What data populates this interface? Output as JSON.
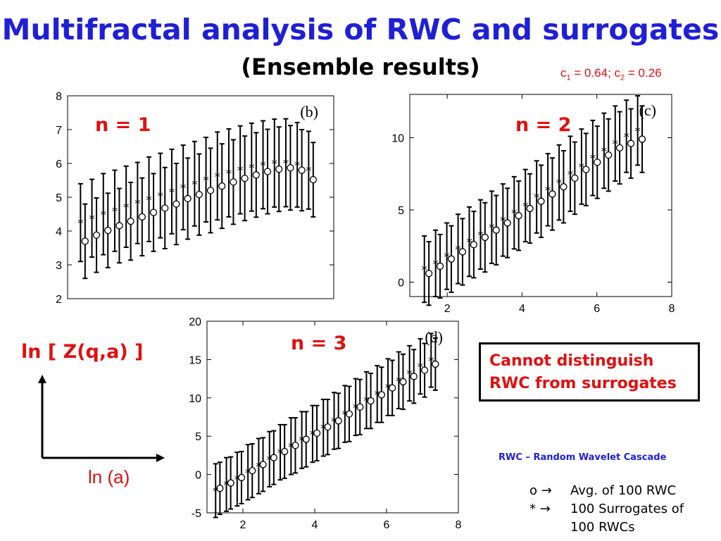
{
  "title": "Multifractal analysis of RWC and surrogates",
  "subtitle": "(Ensemble results)",
  "params": {
    "c1_label": "c",
    "c1_sub": "1",
    "c1_val": " = 0.64; ",
    "c2_label": "c",
    "c2_sub": "2",
    "c2_val": " = 0.26"
  },
  "axis_labels": {
    "y": "ln [ Z(q,a) ]",
    "x": "ln (a)"
  },
  "conclusion_lines": [
    "Cannot distinguish",
    "RWC from surrogates"
  ],
  "footnote": "RWC – Random Wavelet Cascade",
  "legend": {
    "circle_symbol": "o →",
    "circle_text": "Avg. of 100 RWC",
    "star_symbol": "* →",
    "star_text": "100 Surrogates of",
    "star_text2": "100 RWCs"
  },
  "colors": {
    "title": "#1f1fd6",
    "accent_red": "#e01010"
  },
  "chart_data": [
    {
      "type": "scatter",
      "label": "n = 1",
      "panel_tag": "(b)",
      "xlim": [
        1.0,
        8.0
      ],
      "ylim": [
        2,
        8
      ],
      "yticks": [
        2,
        3,
        4,
        5,
        6,
        7,
        8
      ],
      "xticks": [],
      "grid": false,
      "x": [
        1.4,
        1.7,
        2.0,
        2.3,
        2.6,
        2.9,
        3.2,
        3.5,
        3.8,
        4.1,
        4.4,
        4.7,
        5.0,
        5.3,
        5.6,
        5.9,
        6.2,
        6.5,
        6.8,
        7.1,
        7.4
      ],
      "series": [
        {
          "name": "Avg. of 100 RWC",
          "marker": "o",
          "values": [
            3.7,
            3.88,
            4.02,
            4.16,
            4.29,
            4.42,
            4.55,
            4.68,
            4.8,
            4.96,
            5.08,
            5.2,
            5.33,
            5.45,
            5.56,
            5.66,
            5.76,
            5.83,
            5.87,
            5.8,
            5.52
          ],
          "err": [
            1.1,
            1.1,
            1.1,
            1.1,
            1.15,
            1.15,
            1.15,
            1.2,
            1.2,
            1.2,
            1.2,
            1.25,
            1.25,
            1.25,
            1.25,
            1.25,
            1.25,
            1.25,
            1.25,
            1.2,
            1.1
          ]
        },
        {
          "name": "100 Surrogates of 100 RWCs",
          "marker": "*",
          "values": [
            4.25,
            4.38,
            4.5,
            4.6,
            4.72,
            4.83,
            4.94,
            5.05,
            5.17,
            5.29,
            5.4,
            5.52,
            5.63,
            5.72,
            5.81,
            5.89,
            5.96,
            6.01,
            6.02,
            5.96,
            5.8
          ],
          "err": [
            1.15,
            1.15,
            1.2,
            1.2,
            1.2,
            1.2,
            1.25,
            1.25,
            1.25,
            1.25,
            1.25,
            1.25,
            1.3,
            1.3,
            1.3,
            1.3,
            1.3,
            1.3,
            1.3,
            1.25,
            1.15
          ]
        }
      ]
    },
    {
      "type": "scatter",
      "label": "n = 2",
      "panel_tag": "(c)",
      "xlim": [
        1.0,
        8.0
      ],
      "ylim": [
        -1,
        13
      ],
      "yticks": [
        0,
        5,
        10
      ],
      "xticks": [
        2,
        4,
        6,
        8
      ],
      "grid": false,
      "x": [
        1.45,
        1.75,
        2.05,
        2.35,
        2.65,
        2.95,
        3.25,
        3.55,
        3.85,
        4.15,
        4.45,
        4.75,
        5.05,
        5.35,
        5.65,
        5.95,
        6.25,
        6.55,
        6.85,
        7.15
      ],
      "series": [
        {
          "name": "Avg. of 100 RWC",
          "marker": "o",
          "values": [
            0.6,
            1.1,
            1.6,
            2.1,
            2.6,
            3.1,
            3.6,
            4.1,
            4.6,
            5.1,
            5.6,
            6.1,
            6.6,
            7.2,
            7.8,
            8.3,
            8.8,
            9.3,
            9.6,
            9.9
          ],
          "err": [
            2.2,
            2.2,
            2.3,
            2.3,
            2.3,
            2.4,
            2.4,
            2.4,
            2.4,
            2.4,
            2.5,
            2.5,
            2.5,
            2.5,
            2.5,
            2.5,
            2.5,
            2.5,
            2.4,
            2.3
          ]
        },
        {
          "name": "100 Surrogates of 100 RWCs",
          "marker": "*",
          "values": [
            0.9,
            1.3,
            1.8,
            2.3,
            2.8,
            3.3,
            3.8,
            4.3,
            4.8,
            5.3,
            5.9,
            6.4,
            6.9,
            7.5,
            8.0,
            8.6,
            9.1,
            9.6,
            10.1,
            10.5
          ],
          "err": [
            2.3,
            2.3,
            2.3,
            2.4,
            2.4,
            2.4,
            2.5,
            2.5,
            2.5,
            2.5,
            2.5,
            2.5,
            2.6,
            2.6,
            2.6,
            2.6,
            2.6,
            2.6,
            2.5,
            2.4
          ]
        }
      ]
    },
    {
      "type": "scatter",
      "label": "n = 3",
      "panel_tag": "(d)",
      "xlim": [
        1.0,
        8.0
      ],
      "ylim": [
        -5,
        20
      ],
      "yticks": [
        -5,
        0,
        5,
        10,
        15,
        20
      ],
      "xticks": [
        2,
        4,
        6,
        8
      ],
      "grid": false,
      "x": [
        1.3,
        1.6,
        1.9,
        2.2,
        2.5,
        2.8,
        3.1,
        3.4,
        3.7,
        4.0,
        4.3,
        4.6,
        4.9,
        5.2,
        5.5,
        5.8,
        6.1,
        6.4,
        6.7,
        7.0,
        7.3
      ],
      "series": [
        {
          "name": "Avg. of 100 RWC",
          "marker": "o",
          "values": [
            -1.8,
            -1.1,
            -0.4,
            0.5,
            1.3,
            2.2,
            3.0,
            3.8,
            4.6,
            5.4,
            6.2,
            7.0,
            7.9,
            8.8,
            9.6,
            10.4,
            11.3,
            12.1,
            12.8,
            13.6,
            14.4
          ],
          "err": [
            3.4,
            3.4,
            3.4,
            3.5,
            3.5,
            3.5,
            3.5,
            3.6,
            3.6,
            3.6,
            3.6,
            3.6,
            3.6,
            3.6,
            3.6,
            3.6,
            3.6,
            3.6,
            3.5,
            3.5,
            3.4
          ]
        },
        {
          "name": "100 Surrogates of 100 RWCs",
          "marker": "*",
          "values": [
            -2.1,
            -1.3,
            -0.6,
            0.3,
            1.1,
            2.0,
            2.9,
            3.7,
            4.5,
            5.3,
            6.1,
            7.0,
            7.9,
            8.8,
            9.7,
            10.5,
            11.4,
            12.3,
            13.2,
            14.1,
            14.9
          ],
          "err": [
            3.5,
            3.5,
            3.5,
            3.6,
            3.6,
            3.6,
            3.6,
            3.7,
            3.7,
            3.7,
            3.7,
            3.7,
            3.7,
            3.7,
            3.7,
            3.7,
            3.7,
            3.7,
            3.6,
            3.6,
            3.5
          ]
        }
      ]
    }
  ]
}
